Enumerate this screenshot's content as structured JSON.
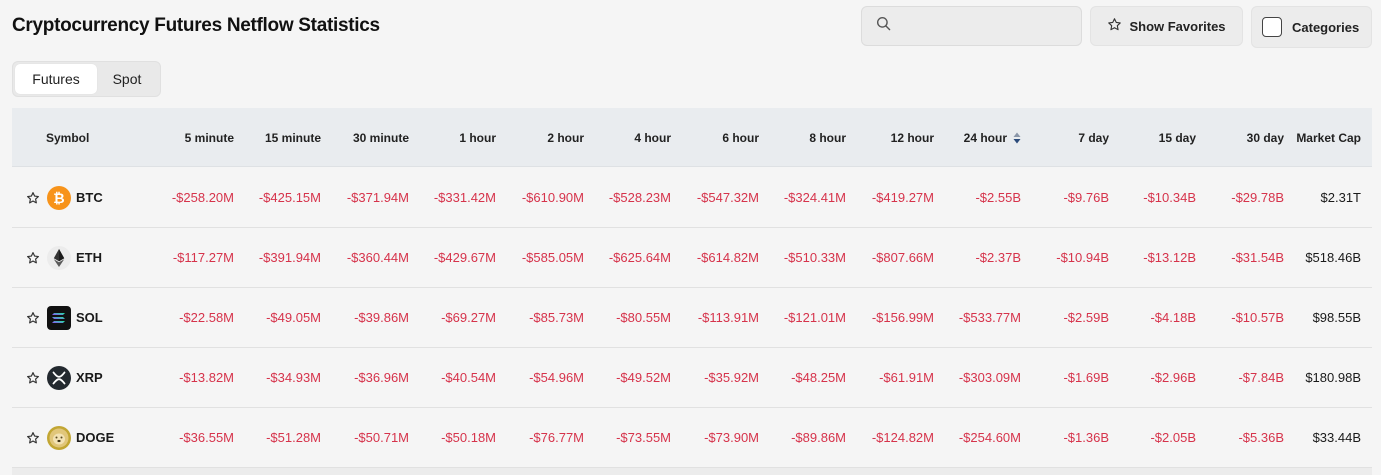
{
  "title": "Cryptocurrency Futures Netflow Statistics",
  "search": {
    "placeholder": "",
    "value": ""
  },
  "toolbar": {
    "favorites_label": "Show Favorites",
    "categories_label": "Categories"
  },
  "tabs": [
    {
      "label": "Futures",
      "active": true
    },
    {
      "label": "Spot",
      "active": false
    }
  ],
  "table": {
    "symbol_header": "Symbol",
    "columns": [
      "5 minute",
      "15 minute",
      "30 minute",
      "1 hour",
      "2 hour",
      "4 hour",
      "6 hour",
      "8 hour",
      "12 hour",
      "24 hour",
      "7 day",
      "15 day",
      "30 day",
      "Market Cap"
    ],
    "sorted_column": "24 hour",
    "rows": [
      {
        "symbol": "BTC",
        "icon": "btc-coin-icon",
        "values": [
          "-$258.20M",
          "-$425.15M",
          "-$371.94M",
          "-$331.42M",
          "-$610.90M",
          "-$528.23M",
          "-$547.32M",
          "-$324.41M",
          "-$419.27M",
          "-$2.55B",
          "-$9.76B",
          "-$10.34B",
          "-$29.78B",
          "$2.31T"
        ]
      },
      {
        "symbol": "ETH",
        "icon": "eth-coin-icon",
        "values": [
          "-$117.27M",
          "-$391.94M",
          "-$360.44M",
          "-$429.67M",
          "-$585.05M",
          "-$625.64M",
          "-$614.82M",
          "-$510.33M",
          "-$807.66M",
          "-$2.37B",
          "-$10.94B",
          "-$13.12B",
          "-$31.54B",
          "$518.46B"
        ]
      },
      {
        "symbol": "SOL",
        "icon": "sol-coin-icon",
        "values": [
          "-$22.58M",
          "-$49.05M",
          "-$39.86M",
          "-$69.27M",
          "-$85.73M",
          "-$80.55M",
          "-$113.91M",
          "-$121.01M",
          "-$156.99M",
          "-$533.77M",
          "-$2.59B",
          "-$4.18B",
          "-$10.57B",
          "$98.55B"
        ]
      },
      {
        "symbol": "XRP",
        "icon": "xrp-coin-icon",
        "values": [
          "-$13.82M",
          "-$34.93M",
          "-$36.96M",
          "-$40.54M",
          "-$54.96M",
          "-$49.52M",
          "-$35.92M",
          "-$48.25M",
          "-$61.91M",
          "-$303.09M",
          "-$1.69B",
          "-$2.96B",
          "-$7.84B",
          "$180.98B"
        ]
      },
      {
        "symbol": "DOGE",
        "icon": "doge-coin-icon",
        "values": [
          "-$36.55M",
          "-$51.28M",
          "-$50.71M",
          "-$50.18M",
          "-$76.77M",
          "-$73.55M",
          "-$73.90M",
          "-$89.86M",
          "-$124.82M",
          "-$254.60M",
          "-$1.36B",
          "-$2.05B",
          "-$5.36B",
          "$33.44B"
        ]
      }
    ]
  },
  "colors": {
    "negative": "#d6334b",
    "header_bg": "#e9ecef",
    "btc": "#f7931a",
    "doge": "#c2a633",
    "sort_arrow": "#2a4a7a"
  }
}
